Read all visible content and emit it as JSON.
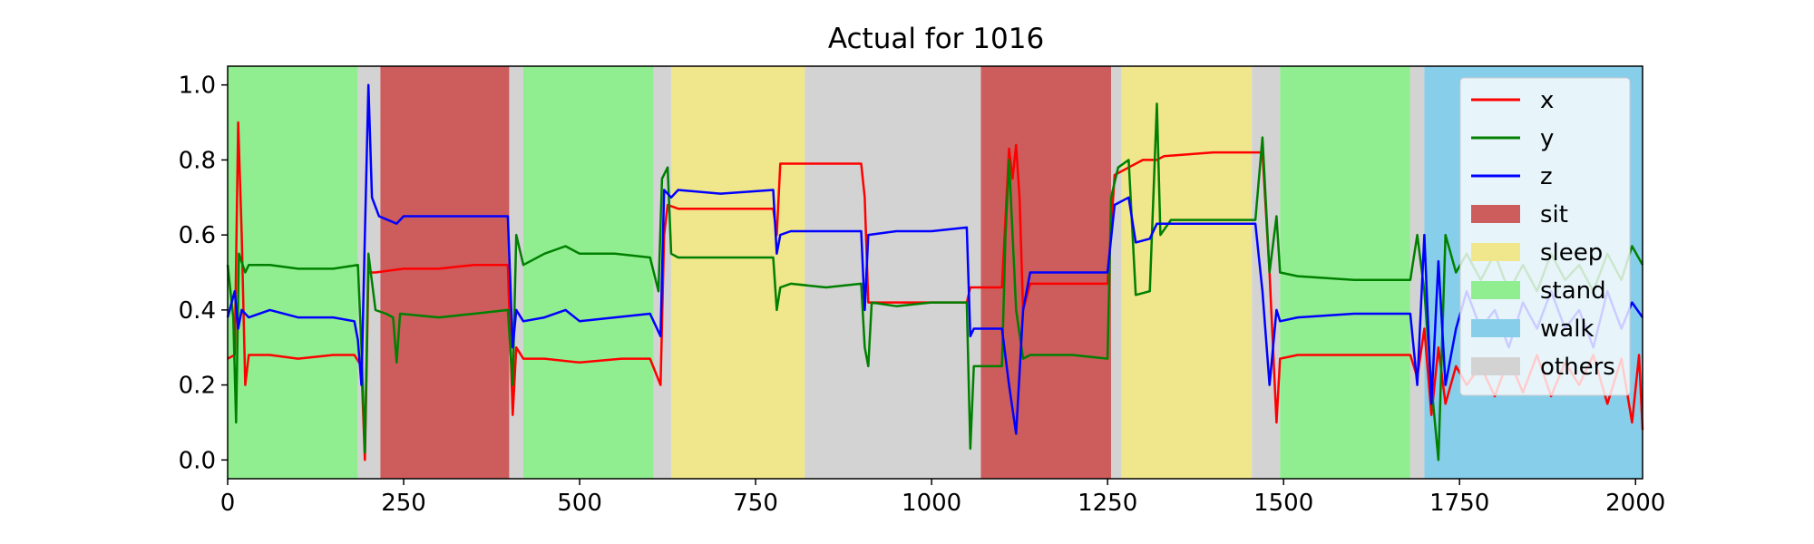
{
  "chart_data": {
    "type": "line",
    "title": "Actual for 1016",
    "xlabel": "",
    "ylabel": "",
    "xlim": [
      0,
      2010
    ],
    "ylim": [
      -0.05,
      1.05
    ],
    "x_ticks": [
      0,
      250,
      500,
      750,
      1000,
      1250,
      1500,
      1750,
      2000
    ],
    "y_ticks": [
      0.0,
      0.2,
      0.4,
      0.6,
      0.8,
      1.0
    ],
    "y_tick_labels": [
      "0.0",
      "0.2",
      "0.4",
      "0.6",
      "0.8",
      "1.0"
    ],
    "grid": false,
    "legend_placement": "upper-right",
    "activity_colors": {
      "sit": "#cd5c5c",
      "sleep": "#f0e68c",
      "stand": "#90ee90",
      "walk": "#87ceeb",
      "others": "#d3d3d3"
    },
    "activity_segments": [
      {
        "start": 0,
        "end": 185,
        "activity": "stand"
      },
      {
        "start": 185,
        "end": 217,
        "activity": "others"
      },
      {
        "start": 217,
        "end": 400,
        "activity": "sit"
      },
      {
        "start": 400,
        "end": 420,
        "activity": "others"
      },
      {
        "start": 420,
        "end": 605,
        "activity": "stand"
      },
      {
        "start": 605,
        "end": 630,
        "activity": "others"
      },
      {
        "start": 630,
        "end": 820,
        "activity": "sleep"
      },
      {
        "start": 820,
        "end": 1070,
        "activity": "others"
      },
      {
        "start": 1070,
        "end": 1255,
        "activity": "sit"
      },
      {
        "start": 1255,
        "end": 1270,
        "activity": "others"
      },
      {
        "start": 1270,
        "end": 1455,
        "activity": "sleep"
      },
      {
        "start": 1455,
        "end": 1495,
        "activity": "others"
      },
      {
        "start": 1495,
        "end": 1680,
        "activity": "stand"
      },
      {
        "start": 1680,
        "end": 1700,
        "activity": "others"
      },
      {
        "start": 1700,
        "end": 2010,
        "activity": "walk"
      }
    ],
    "series": [
      {
        "name": "x",
        "color": "#ff0000",
        "points": [
          [
            0,
            0.27
          ],
          [
            10,
            0.28
          ],
          [
            15,
            0.9
          ],
          [
            20,
            0.6
          ],
          [
            25,
            0.2
          ],
          [
            30,
            0.28
          ],
          [
            60,
            0.28
          ],
          [
            100,
            0.27
          ],
          [
            150,
            0.28
          ],
          [
            180,
            0.28
          ],
          [
            190,
            0.25
          ],
          [
            195,
            0.0
          ],
          [
            200,
            0.5
          ],
          [
            210,
            0.5
          ],
          [
            250,
            0.51
          ],
          [
            300,
            0.51
          ],
          [
            350,
            0.52
          ],
          [
            398,
            0.52
          ],
          [
            405,
            0.12
          ],
          [
            410,
            0.3
          ],
          [
            420,
            0.27
          ],
          [
            450,
            0.27
          ],
          [
            500,
            0.26
          ],
          [
            560,
            0.27
          ],
          [
            600,
            0.27
          ],
          [
            615,
            0.2
          ],
          [
            620,
            0.6
          ],
          [
            625,
            0.68
          ],
          [
            640,
            0.67
          ],
          [
            700,
            0.67
          ],
          [
            775,
            0.67
          ],
          [
            780,
            0.6
          ],
          [
            785,
            0.79
          ],
          [
            800,
            0.79
          ],
          [
            850,
            0.79
          ],
          [
            900,
            0.79
          ],
          [
            905,
            0.7
          ],
          [
            910,
            0.42
          ],
          [
            950,
            0.42
          ],
          [
            1000,
            0.42
          ],
          [
            1050,
            0.42
          ],
          [
            1055,
            0.46
          ],
          [
            1100,
            0.46
          ],
          [
            1110,
            0.83
          ],
          [
            1115,
            0.75
          ],
          [
            1120,
            0.84
          ],
          [
            1125,
            0.7
          ],
          [
            1130,
            0.4
          ],
          [
            1140,
            0.47
          ],
          [
            1200,
            0.47
          ],
          [
            1250,
            0.47
          ],
          [
            1260,
            0.76
          ],
          [
            1270,
            0.77
          ],
          [
            1300,
            0.8
          ],
          [
            1320,
            0.8
          ],
          [
            1330,
            0.81
          ],
          [
            1400,
            0.82
          ],
          [
            1460,
            0.82
          ],
          [
            1470,
            0.82
          ],
          [
            1480,
            0.5
          ],
          [
            1490,
            0.1
          ],
          [
            1495,
            0.27
          ],
          [
            1520,
            0.28
          ],
          [
            1600,
            0.28
          ],
          [
            1680,
            0.28
          ],
          [
            1690,
            0.22
          ],
          [
            1700,
            0.35
          ],
          [
            1710,
            0.12
          ],
          [
            1720,
            0.3
          ],
          [
            1730,
            0.15
          ],
          [
            1745,
            0.25
          ],
          [
            1760,
            0.2
          ],
          [
            1780,
            0.25
          ],
          [
            1800,
            0.17
          ],
          [
            1820,
            0.27
          ],
          [
            1840,
            0.18
          ],
          [
            1860,
            0.28
          ],
          [
            1880,
            0.17
          ],
          [
            1900,
            0.26
          ],
          [
            1920,
            0.2
          ],
          [
            1940,
            0.28
          ],
          [
            1960,
            0.15
          ],
          [
            1980,
            0.27
          ],
          [
            1995,
            0.1
          ],
          [
            2005,
            0.28
          ],
          [
            2010,
            0.08
          ]
        ]
      },
      {
        "name": "y",
        "color": "#008000",
        "points": [
          [
            0,
            0.52
          ],
          [
            8,
            0.38
          ],
          [
            12,
            0.1
          ],
          [
            16,
            0.55
          ],
          [
            25,
            0.5
          ],
          [
            30,
            0.52
          ],
          [
            60,
            0.52
          ],
          [
            100,
            0.51
          ],
          [
            150,
            0.51
          ],
          [
            185,
            0.52
          ],
          [
            190,
            0.3
          ],
          [
            195,
            0.02
          ],
          [
            200,
            0.55
          ],
          [
            210,
            0.4
          ],
          [
            225,
            0.39
          ],
          [
            235,
            0.38
          ],
          [
            240,
            0.26
          ],
          [
            245,
            0.39
          ],
          [
            300,
            0.38
          ],
          [
            350,
            0.39
          ],
          [
            398,
            0.4
          ],
          [
            405,
            0.2
          ],
          [
            410,
            0.6
          ],
          [
            420,
            0.52
          ],
          [
            450,
            0.55
          ],
          [
            480,
            0.57
          ],
          [
            500,
            0.55
          ],
          [
            550,
            0.55
          ],
          [
            600,
            0.54
          ],
          [
            612,
            0.45
          ],
          [
            617,
            0.75
          ],
          [
            625,
            0.78
          ],
          [
            630,
            0.55
          ],
          [
            640,
            0.54
          ],
          [
            700,
            0.54
          ],
          [
            775,
            0.54
          ],
          [
            780,
            0.4
          ],
          [
            785,
            0.46
          ],
          [
            800,
            0.47
          ],
          [
            850,
            0.46
          ],
          [
            900,
            0.47
          ],
          [
            905,
            0.3
          ],
          [
            910,
            0.25
          ],
          [
            915,
            0.42
          ],
          [
            950,
            0.41
          ],
          [
            1000,
            0.42
          ],
          [
            1050,
            0.42
          ],
          [
            1055,
            0.03
          ],
          [
            1060,
            0.25
          ],
          [
            1100,
            0.25
          ],
          [
            1105,
            0.6
          ],
          [
            1110,
            0.8
          ],
          [
            1115,
            0.6
          ],
          [
            1120,
            0.4
          ],
          [
            1130,
            0.27
          ],
          [
            1140,
            0.28
          ],
          [
            1200,
            0.28
          ],
          [
            1250,
            0.27
          ],
          [
            1255,
            0.7
          ],
          [
            1265,
            0.78
          ],
          [
            1280,
            0.8
          ],
          [
            1290,
            0.44
          ],
          [
            1310,
            0.45
          ],
          [
            1320,
            0.95
          ],
          [
            1325,
            0.6
          ],
          [
            1340,
            0.64
          ],
          [
            1400,
            0.64
          ],
          [
            1460,
            0.64
          ],
          [
            1470,
            0.86
          ],
          [
            1480,
            0.5
          ],
          [
            1490,
            0.65
          ],
          [
            1495,
            0.5
          ],
          [
            1520,
            0.49
          ],
          [
            1600,
            0.48
          ],
          [
            1680,
            0.48
          ],
          [
            1690,
            0.6
          ],
          [
            1700,
            0.45
          ],
          [
            1710,
            0.2
          ],
          [
            1720,
            0.0
          ],
          [
            1730,
            0.6
          ],
          [
            1745,
            0.5
          ],
          [
            1760,
            0.55
          ],
          [
            1780,
            0.48
          ],
          [
            1800,
            0.55
          ],
          [
            1820,
            0.45
          ],
          [
            1840,
            0.52
          ],
          [
            1860,
            0.45
          ],
          [
            1880,
            0.55
          ],
          [
            1900,
            0.48
          ],
          [
            1920,
            0.52
          ],
          [
            1940,
            0.45
          ],
          [
            1960,
            0.55
          ],
          [
            1980,
            0.48
          ],
          [
            1995,
            0.57
          ],
          [
            2010,
            0.52
          ]
        ]
      },
      {
        "name": "z",
        "color": "#0000ff",
        "points": [
          [
            0,
            0.38
          ],
          [
            10,
            0.45
          ],
          [
            15,
            0.35
          ],
          [
            20,
            0.4
          ],
          [
            30,
            0.38
          ],
          [
            60,
            0.4
          ],
          [
            100,
            0.38
          ],
          [
            150,
            0.38
          ],
          [
            180,
            0.37
          ],
          [
            185,
            0.32
          ],
          [
            190,
            0.2
          ],
          [
            195,
            0.6
          ],
          [
            200,
            1.0
          ],
          [
            205,
            0.7
          ],
          [
            215,
            0.65
          ],
          [
            240,
            0.63
          ],
          [
            250,
            0.65
          ],
          [
            300,
            0.65
          ],
          [
            350,
            0.65
          ],
          [
            398,
            0.65
          ],
          [
            405,
            0.3
          ],
          [
            410,
            0.4
          ],
          [
            420,
            0.37
          ],
          [
            450,
            0.38
          ],
          [
            480,
            0.4
          ],
          [
            500,
            0.37
          ],
          [
            550,
            0.38
          ],
          [
            600,
            0.39
          ],
          [
            615,
            0.33
          ],
          [
            620,
            0.72
          ],
          [
            630,
            0.7
          ],
          [
            640,
            0.72
          ],
          [
            700,
            0.71
          ],
          [
            775,
            0.72
          ],
          [
            780,
            0.55
          ],
          [
            785,
            0.6
          ],
          [
            800,
            0.61
          ],
          [
            850,
            0.61
          ],
          [
            900,
            0.61
          ],
          [
            905,
            0.4
          ],
          [
            910,
            0.6
          ],
          [
            950,
            0.61
          ],
          [
            1000,
            0.61
          ],
          [
            1050,
            0.62
          ],
          [
            1055,
            0.33
          ],
          [
            1060,
            0.35
          ],
          [
            1100,
            0.35
          ],
          [
            1110,
            0.2
          ],
          [
            1120,
            0.07
          ],
          [
            1130,
            0.4
          ],
          [
            1140,
            0.5
          ],
          [
            1200,
            0.5
          ],
          [
            1250,
            0.5
          ],
          [
            1260,
            0.68
          ],
          [
            1280,
            0.7
          ],
          [
            1290,
            0.58
          ],
          [
            1310,
            0.59
          ],
          [
            1320,
            0.63
          ],
          [
            1340,
            0.63
          ],
          [
            1400,
            0.63
          ],
          [
            1460,
            0.63
          ],
          [
            1470,
            0.45
          ],
          [
            1480,
            0.2
          ],
          [
            1490,
            0.4
          ],
          [
            1495,
            0.37
          ],
          [
            1520,
            0.38
          ],
          [
            1600,
            0.39
          ],
          [
            1680,
            0.39
          ],
          [
            1690,
            0.2
          ],
          [
            1700,
            0.6
          ],
          [
            1710,
            0.15
          ],
          [
            1720,
            0.53
          ],
          [
            1730,
            0.2
          ],
          [
            1745,
            0.35
          ],
          [
            1760,
            0.45
          ],
          [
            1780,
            0.35
          ],
          [
            1800,
            0.4
          ],
          [
            1820,
            0.3
          ],
          [
            1840,
            0.42
          ],
          [
            1860,
            0.35
          ],
          [
            1880,
            0.45
          ],
          [
            1900,
            0.35
          ],
          [
            1920,
            0.4
          ],
          [
            1940,
            0.3
          ],
          [
            1960,
            0.45
          ],
          [
            1980,
            0.35
          ],
          [
            1995,
            0.42
          ],
          [
            2010,
            0.38
          ]
        ]
      }
    ],
    "legend": [
      {
        "label": "x",
        "kind": "line",
        "color": "#ff0000"
      },
      {
        "label": "y",
        "kind": "line",
        "color": "#008000"
      },
      {
        "label": "z",
        "kind": "line",
        "color": "#0000ff"
      },
      {
        "label": "sit",
        "kind": "patch",
        "color": "#cd5c5c"
      },
      {
        "label": "sleep",
        "kind": "patch",
        "color": "#f0e68c"
      },
      {
        "label": "stand",
        "kind": "patch",
        "color": "#90ee90"
      },
      {
        "label": "walk",
        "kind": "patch",
        "color": "#87ceeb"
      },
      {
        "label": "others",
        "kind": "patch",
        "color": "#d3d3d3"
      }
    ]
  }
}
